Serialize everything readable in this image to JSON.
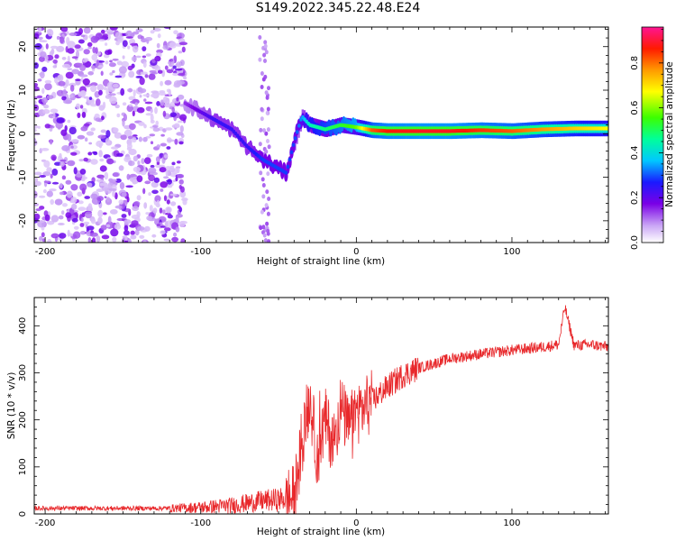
{
  "title": "S149.2022.345.22.48.E24",
  "chart_data": [
    {
      "type": "heatmap",
      "xlabel": "Height of straight line (km)",
      "ylabel": "Frequency (Hz)",
      "xlim": [
        -207,
        162
      ],
      "ylim": [
        -25,
        24.5
      ],
      "xticks": [
        -200,
        -100,
        0,
        100
      ],
      "yticks": [
        -20,
        -10,
        0,
        10,
        20
      ],
      "colorbar": {
        "label": "Normalized spectral amplitude",
        "range": [
          0,
          0.96
        ],
        "ticks": [
          0.0,
          0.2,
          0.4,
          0.6,
          0.8
        ]
      },
      "ridge": {
        "x": [
          -110,
          -100,
          -90,
          -80,
          -70,
          -60,
          -55,
          -50,
          -45,
          -40,
          -35,
          -30,
          -20,
          -10,
          0,
          10,
          20,
          40,
          60,
          80,
          100,
          120,
          140,
          162
        ],
        "freq": [
          7,
          5,
          3,
          1,
          -3,
          -6,
          -7,
          -8,
          -9,
          -2,
          4,
          2,
          1,
          2,
          1.5,
          0.8,
          0.6,
          0.6,
          0.6,
          0.8,
          0.6,
          1.0,
          1.2,
          1.2
        ],
        "amplitude": [
          0.15,
          0.2,
          0.25,
          0.25,
          0.25,
          0.3,
          0.3,
          0.3,
          0.3,
          0.3,
          0.35,
          0.45,
          0.5,
          0.55,
          0.6,
          0.85,
          0.9,
          0.92,
          0.92,
          0.88,
          0.85,
          0.8,
          0.75,
          0.7
        ]
      },
      "noise_region": [
        -207,
        -110
      ]
    },
    {
      "type": "line",
      "xlabel": "Height of straight line (km)",
      "ylabel": "SNR (10 * v/v)",
      "xlim": [
        -207,
        162
      ],
      "ylim": [
        0,
        460
      ],
      "xticks": [
        -200,
        -100,
        0,
        100
      ],
      "yticks": [
        0,
        100,
        200,
        300,
        400
      ],
      "color": "#e8282b",
      "series": [
        {
          "x": [
            -207,
            -180,
            -150,
            -120,
            -100,
            -80,
            -60,
            -50,
            -40,
            -35,
            -30,
            -25,
            -20,
            -15,
            -10,
            -5,
            0,
            10,
            20,
            30,
            40,
            60,
            80,
            100,
            120,
            130,
            134,
            140,
            150,
            162
          ],
          "values": [
            12,
            12,
            12,
            12,
            14,
            18,
            28,
            30,
            35,
            150,
            250,
            120,
            200,
            150,
            230,
            180,
            215,
            240,
            270,
            295,
            310,
            330,
            340,
            348,
            355,
            360,
            440,
            358,
            360,
            355
          ]
        }
      ]
    }
  ]
}
